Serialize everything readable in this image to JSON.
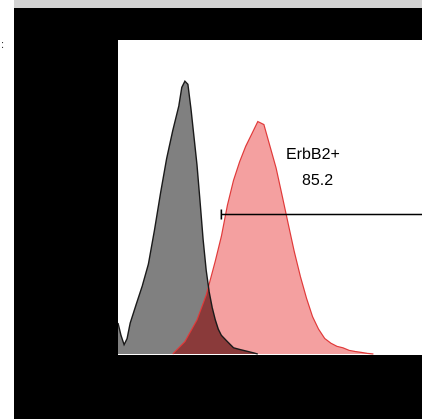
{
  "page": {
    "gutter_mark": ":"
  },
  "colors": {
    "frame": "#d3d3d3",
    "panel": "#000000",
    "plot_background": "#ffffff",
    "control_fill": "#808080",
    "control_stroke": "#1a1a1a",
    "sample_fill": "#f4a0a0",
    "sample_stroke": "#e03a3a",
    "overlap_fill": "#8a3a3a",
    "gate_line": "#000000"
  },
  "chart_data": {
    "type": "area",
    "title": "",
    "xlabel": "",
    "ylabel": "",
    "xlim": [
      0,
      1
    ],
    "ylim": [
      0,
      1
    ],
    "grid": false,
    "legend": "none",
    "series": [
      {
        "name": "",
        "role": "control",
        "x": [
          0.0,
          0.01,
          0.02,
          0.03,
          0.04,
          0.06,
          0.08,
          0.1,
          0.12,
          0.14,
          0.16,
          0.18,
          0.2,
          0.21,
          0.22,
          0.23,
          0.24,
          0.25,
          0.26,
          0.27,
          0.28,
          0.29,
          0.3,
          0.31,
          0.32,
          0.33,
          0.34,
          0.36,
          0.38,
          0.4,
          0.42,
          0.44,
          0.46
        ],
        "y": [
          0.1,
          0.06,
          0.03,
          0.05,
          0.1,
          0.16,
          0.22,
          0.29,
          0.4,
          0.52,
          0.63,
          0.72,
          0.8,
          0.86,
          0.88,
          0.87,
          0.79,
          0.7,
          0.61,
          0.49,
          0.37,
          0.27,
          0.2,
          0.15,
          0.11,
          0.08,
          0.06,
          0.04,
          0.02,
          0.015,
          0.01,
          0.005,
          0.0
        ]
      },
      {
        "name": "",
        "role": "ErbB2",
        "x": [
          0.18,
          0.22,
          0.26,
          0.29,
          0.32,
          0.34,
          0.36,
          0.38,
          0.4,
          0.42,
          0.44,
          0.46,
          0.48,
          0.5,
          0.52,
          0.54,
          0.56,
          0.58,
          0.6,
          0.62,
          0.64,
          0.66,
          0.68,
          0.7,
          0.72,
          0.74,
          0.76,
          0.78,
          0.8,
          0.82,
          0.84
        ],
        "y": [
          0.0,
          0.04,
          0.11,
          0.19,
          0.3,
          0.38,
          0.48,
          0.56,
          0.62,
          0.67,
          0.71,
          0.75,
          0.74,
          0.67,
          0.6,
          0.51,
          0.42,
          0.33,
          0.25,
          0.18,
          0.12,
          0.08,
          0.05,
          0.035,
          0.025,
          0.02,
          0.012,
          0.008,
          0.005,
          0.002,
          0.0
        ]
      }
    ],
    "gate": {
      "name": "ErbB2+",
      "value": "85.2",
      "x_start": 0.34,
      "x_end": 1.0,
      "y": 0.45
    }
  }
}
